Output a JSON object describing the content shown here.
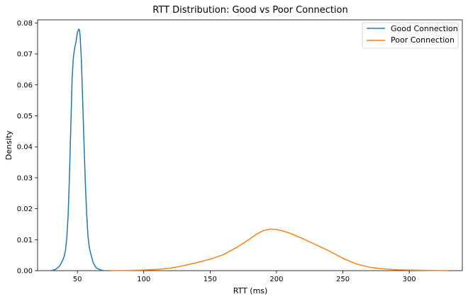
{
  "chart_data": {
    "type": "line",
    "title": "RTT Distribution: Good vs Poor Connection",
    "xlabel": "RTT (ms)",
    "ylabel": "Density",
    "xlim": [
      20,
      340
    ],
    "ylim": [
      0,
      0.081
    ],
    "xticks": [
      50,
      100,
      150,
      200,
      250,
      300
    ],
    "yticks": [
      0.0,
      0.01,
      0.02,
      0.03,
      0.04,
      0.05,
      0.06,
      0.07,
      0.08
    ],
    "ytick_labels": [
      "0.00",
      "0.01",
      "0.02",
      "0.03",
      "0.04",
      "0.05",
      "0.06",
      "0.07",
      "0.08"
    ],
    "grid": false,
    "legend_position": "top-right",
    "series": [
      {
        "name": "Good Connection",
        "color": "#1f77b4",
        "x": [
          30,
          33,
          36,
          38,
          40,
          41,
          42,
          43,
          44,
          45,
          46,
          47,
          48,
          49,
          50,
          51,
          51.5,
          52,
          53,
          54,
          55,
          56,
          57,
          58,
          59,
          60,
          62,
          64,
          66,
          68,
          70
        ],
        "y": [
          0.0,
          0.0003,
          0.0012,
          0.0025,
          0.0045,
          0.0065,
          0.0105,
          0.018,
          0.03,
          0.046,
          0.062,
          0.069,
          0.072,
          0.074,
          0.077,
          0.078,
          0.0778,
          0.076,
          0.068,
          0.055,
          0.041,
          0.028,
          0.018,
          0.011,
          0.0075,
          0.0055,
          0.0025,
          0.001,
          0.0005,
          0.0002,
          0.0
        ]
      },
      {
        "name": "Poor Connection",
        "color": "#ff7f0e",
        "x": [
          75,
          90,
          100,
          110,
          120,
          130,
          140,
          150,
          160,
          170,
          180,
          185,
          190,
          195,
          200,
          205,
          210,
          220,
          230,
          240,
          250,
          260,
          270,
          280,
          290,
          300,
          315,
          330
        ],
        "y": [
          0.0,
          0.0001,
          0.0002,
          0.0004,
          0.0008,
          0.0016,
          0.0026,
          0.0037,
          0.0052,
          0.0075,
          0.0103,
          0.0118,
          0.0129,
          0.0134,
          0.0133,
          0.0128,
          0.0121,
          0.0103,
          0.0083,
          0.0063,
          0.004,
          0.0022,
          0.0011,
          0.0006,
          0.0003,
          0.0002,
          0.0001,
          0.0
        ]
      }
    ]
  }
}
